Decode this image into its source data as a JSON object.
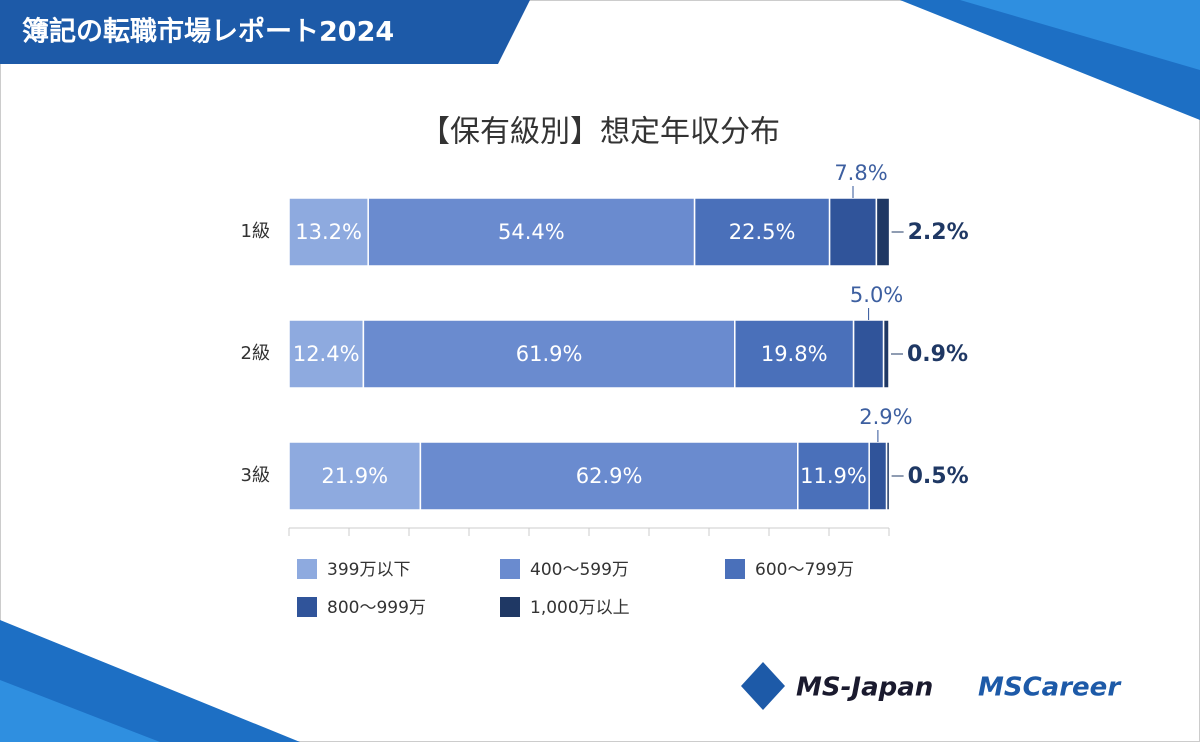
{
  "header": {
    "title": "簿記の転職市場レポート2024"
  },
  "logos": [
    "MS-Japan",
    "MSCareer"
  ],
  "chart_data": {
    "type": "stacked-bar-horizontal",
    "title": "【保有級別】想定年収分布",
    "categories": [
      "1級",
      "2級",
      "3級"
    ],
    "series": [
      {
        "name": "399万以下",
        "color": "#8eaadf",
        "values": [
          13.2,
          12.4,
          21.9
        ],
        "value_labels": [
          "13.2%",
          "12.4%",
          "21.9%"
        ]
      },
      {
        "name": "400～599万",
        "color": "#6a8bcf",
        "values": [
          54.4,
          61.9,
          62.9
        ],
        "value_labels": [
          "54.4%",
          "61.9%",
          "62.9%"
        ]
      },
      {
        "name": "600～799万",
        "color": "#4a70ba",
        "values": [
          22.5,
          19.8,
          11.9
        ],
        "value_labels": [
          "22.5%",
          "19.8%",
          "11.9%"
        ]
      },
      {
        "name": "800～999万",
        "color": "#30549a",
        "values": [
          7.8,
          5.0,
          2.9
        ],
        "value_labels": [
          "7.8%",
          "5.0%",
          "2.9%"
        ]
      },
      {
        "name": "1,000万以上",
        "color": "#1f3864",
        "values": [
          2.2,
          0.9,
          0.5
        ],
        "value_labels": [
          "2.2%",
          "0.9%",
          "0.5%"
        ]
      }
    ],
    "xlim": [
      0,
      100
    ],
    "xticks": [
      0,
      10,
      20,
      30,
      40,
      50,
      60,
      70,
      80,
      90,
      100
    ]
  }
}
